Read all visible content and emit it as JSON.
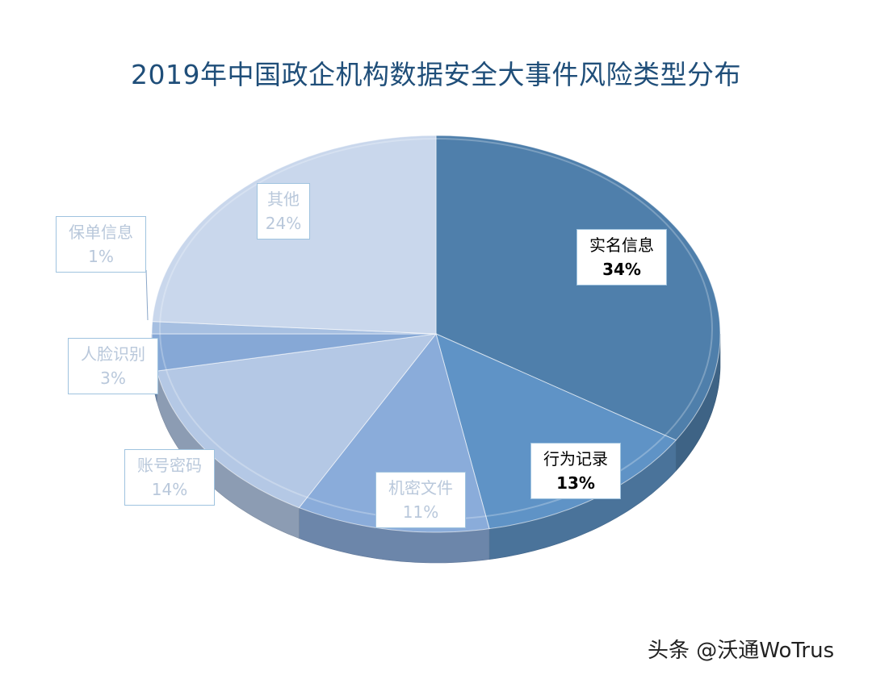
{
  "title": "2019年中国政企机构数据安全大事件风险类型分布",
  "watermark": "头条 @沃通WoTrus",
  "chart_data": {
    "type": "pie",
    "title": "2019年中国政企机构数据安全大事件风险类型分布",
    "slices": [
      {
        "name": "实名信息",
        "value": 34,
        "label": "34%",
        "color": "#4f7fab"
      },
      {
        "name": "行为记录",
        "value": 13,
        "label": "13%",
        "color": "#5f93c6"
      },
      {
        "name": "机密文件",
        "value": 11,
        "label": "11%",
        "color": "#8aacda"
      },
      {
        "name": "账号密码",
        "value": 14,
        "label": "14%",
        "color": "#b4c8e5"
      },
      {
        "name": "人脸识别",
        "value": 3,
        "label": "3%",
        "color": "#86a8d6"
      },
      {
        "name": "保单信息",
        "value": 1,
        "label": "1%",
        "color": "#a6bfe1"
      },
      {
        "name": "其他",
        "value": 24,
        "label": "24%",
        "color": "#c9d7ec"
      }
    ]
  }
}
